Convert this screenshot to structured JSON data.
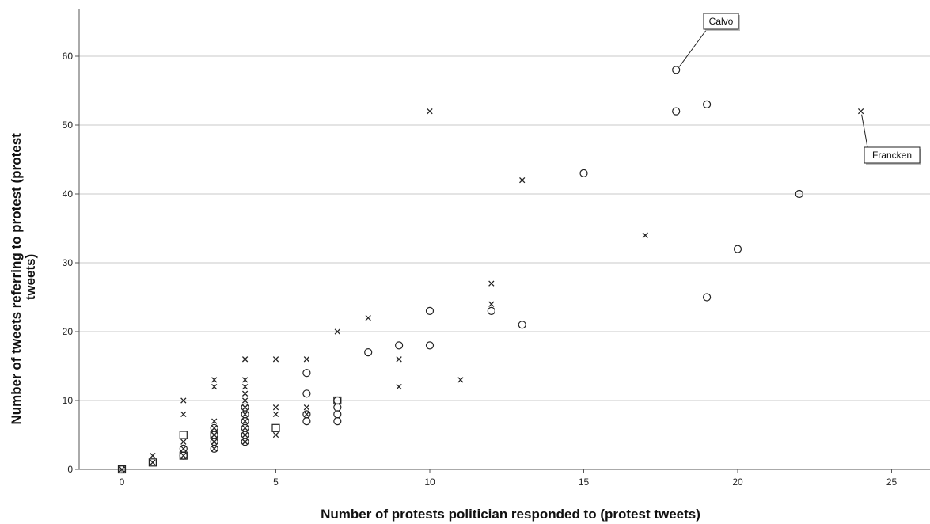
{
  "chart_data": {
    "type": "scatter",
    "title": "",
    "xlabel": "Number of protests politician responded to (protest tweets)",
    "ylabel_lines": [
      "Number of tweets referring to protest (protest",
      "tweets)"
    ],
    "xlim": [
      -2,
      26
    ],
    "ylim": [
      0,
      66
    ],
    "xticks": [
      0,
      5,
      10,
      15,
      20,
      25
    ],
    "yticks": [
      0,
      10,
      20,
      30,
      40,
      50,
      60
    ],
    "grid": "horizontal",
    "legend": "none",
    "series": [
      {
        "marker": "circle",
        "points": [
          [
            18,
            58
          ],
          [
            18,
            52
          ],
          [
            19,
            53
          ],
          [
            15,
            43
          ],
          [
            22,
            40
          ],
          [
            20,
            32
          ],
          [
            19,
            25
          ],
          [
            13,
            21
          ],
          [
            12,
            23
          ],
          [
            10,
            23
          ],
          [
            10,
            18
          ],
          [
            9,
            18
          ],
          [
            8,
            17
          ],
          [
            7,
            10
          ],
          [
            7,
            9
          ],
          [
            7,
            8
          ],
          [
            7,
            7
          ],
          [
            6,
            14
          ],
          [
            6,
            11
          ],
          [
            6,
            8
          ],
          [
            6,
            7
          ],
          [
            4,
            9
          ],
          [
            4,
            8
          ],
          [
            4,
            7
          ],
          [
            4,
            6
          ],
          [
            4,
            5
          ],
          [
            4,
            4
          ],
          [
            3,
            6
          ],
          [
            3,
            5
          ],
          [
            3,
            4
          ],
          [
            3,
            3
          ],
          [
            2,
            3
          ],
          [
            2,
            2
          ],
          [
            0,
            0
          ]
        ]
      },
      {
        "marker": "cross",
        "points": [
          [
            24,
            52
          ],
          [
            10,
            52
          ],
          [
            13,
            42
          ],
          [
            17,
            34
          ],
          [
            12,
            27
          ],
          [
            12,
            24
          ],
          [
            11,
            13
          ],
          [
            9,
            16
          ],
          [
            9,
            12
          ],
          [
            8,
            22
          ],
          [
            7,
            20
          ],
          [
            6,
            16
          ],
          [
            6,
            9
          ],
          [
            6,
            8
          ],
          [
            5,
            16
          ],
          [
            5,
            9
          ],
          [
            5,
            8
          ],
          [
            5,
            5
          ],
          [
            4,
            16
          ],
          [
            4,
            13
          ],
          [
            4,
            12
          ],
          [
            4,
            11
          ],
          [
            4,
            10
          ],
          [
            4,
            9
          ],
          [
            4,
            8
          ],
          [
            4,
            7
          ],
          [
            4,
            6
          ],
          [
            4,
            5
          ],
          [
            4,
            4
          ],
          [
            3,
            13
          ],
          [
            3,
            12
          ],
          [
            3,
            7
          ],
          [
            3,
            6
          ],
          [
            3,
            5
          ],
          [
            3,
            4
          ],
          [
            3,
            3
          ],
          [
            2,
            10
          ],
          [
            2,
            8
          ],
          [
            2,
            4
          ],
          [
            2,
            3
          ],
          [
            2,
            2
          ],
          [
            1,
            2
          ],
          [
            1,
            1
          ],
          [
            0,
            0
          ]
        ]
      },
      {
        "marker": "square",
        "points": [
          [
            7,
            10
          ],
          [
            5,
            6
          ],
          [
            3,
            5
          ],
          [
            2,
            5
          ],
          [
            2,
            2
          ],
          [
            1,
            1
          ],
          [
            0,
            0
          ]
        ]
      }
    ],
    "annotations": [
      {
        "label": "Calvo",
        "point": [
          18,
          58
        ]
      },
      {
        "label": "Francken",
        "point": [
          24,
          52
        ]
      }
    ]
  }
}
